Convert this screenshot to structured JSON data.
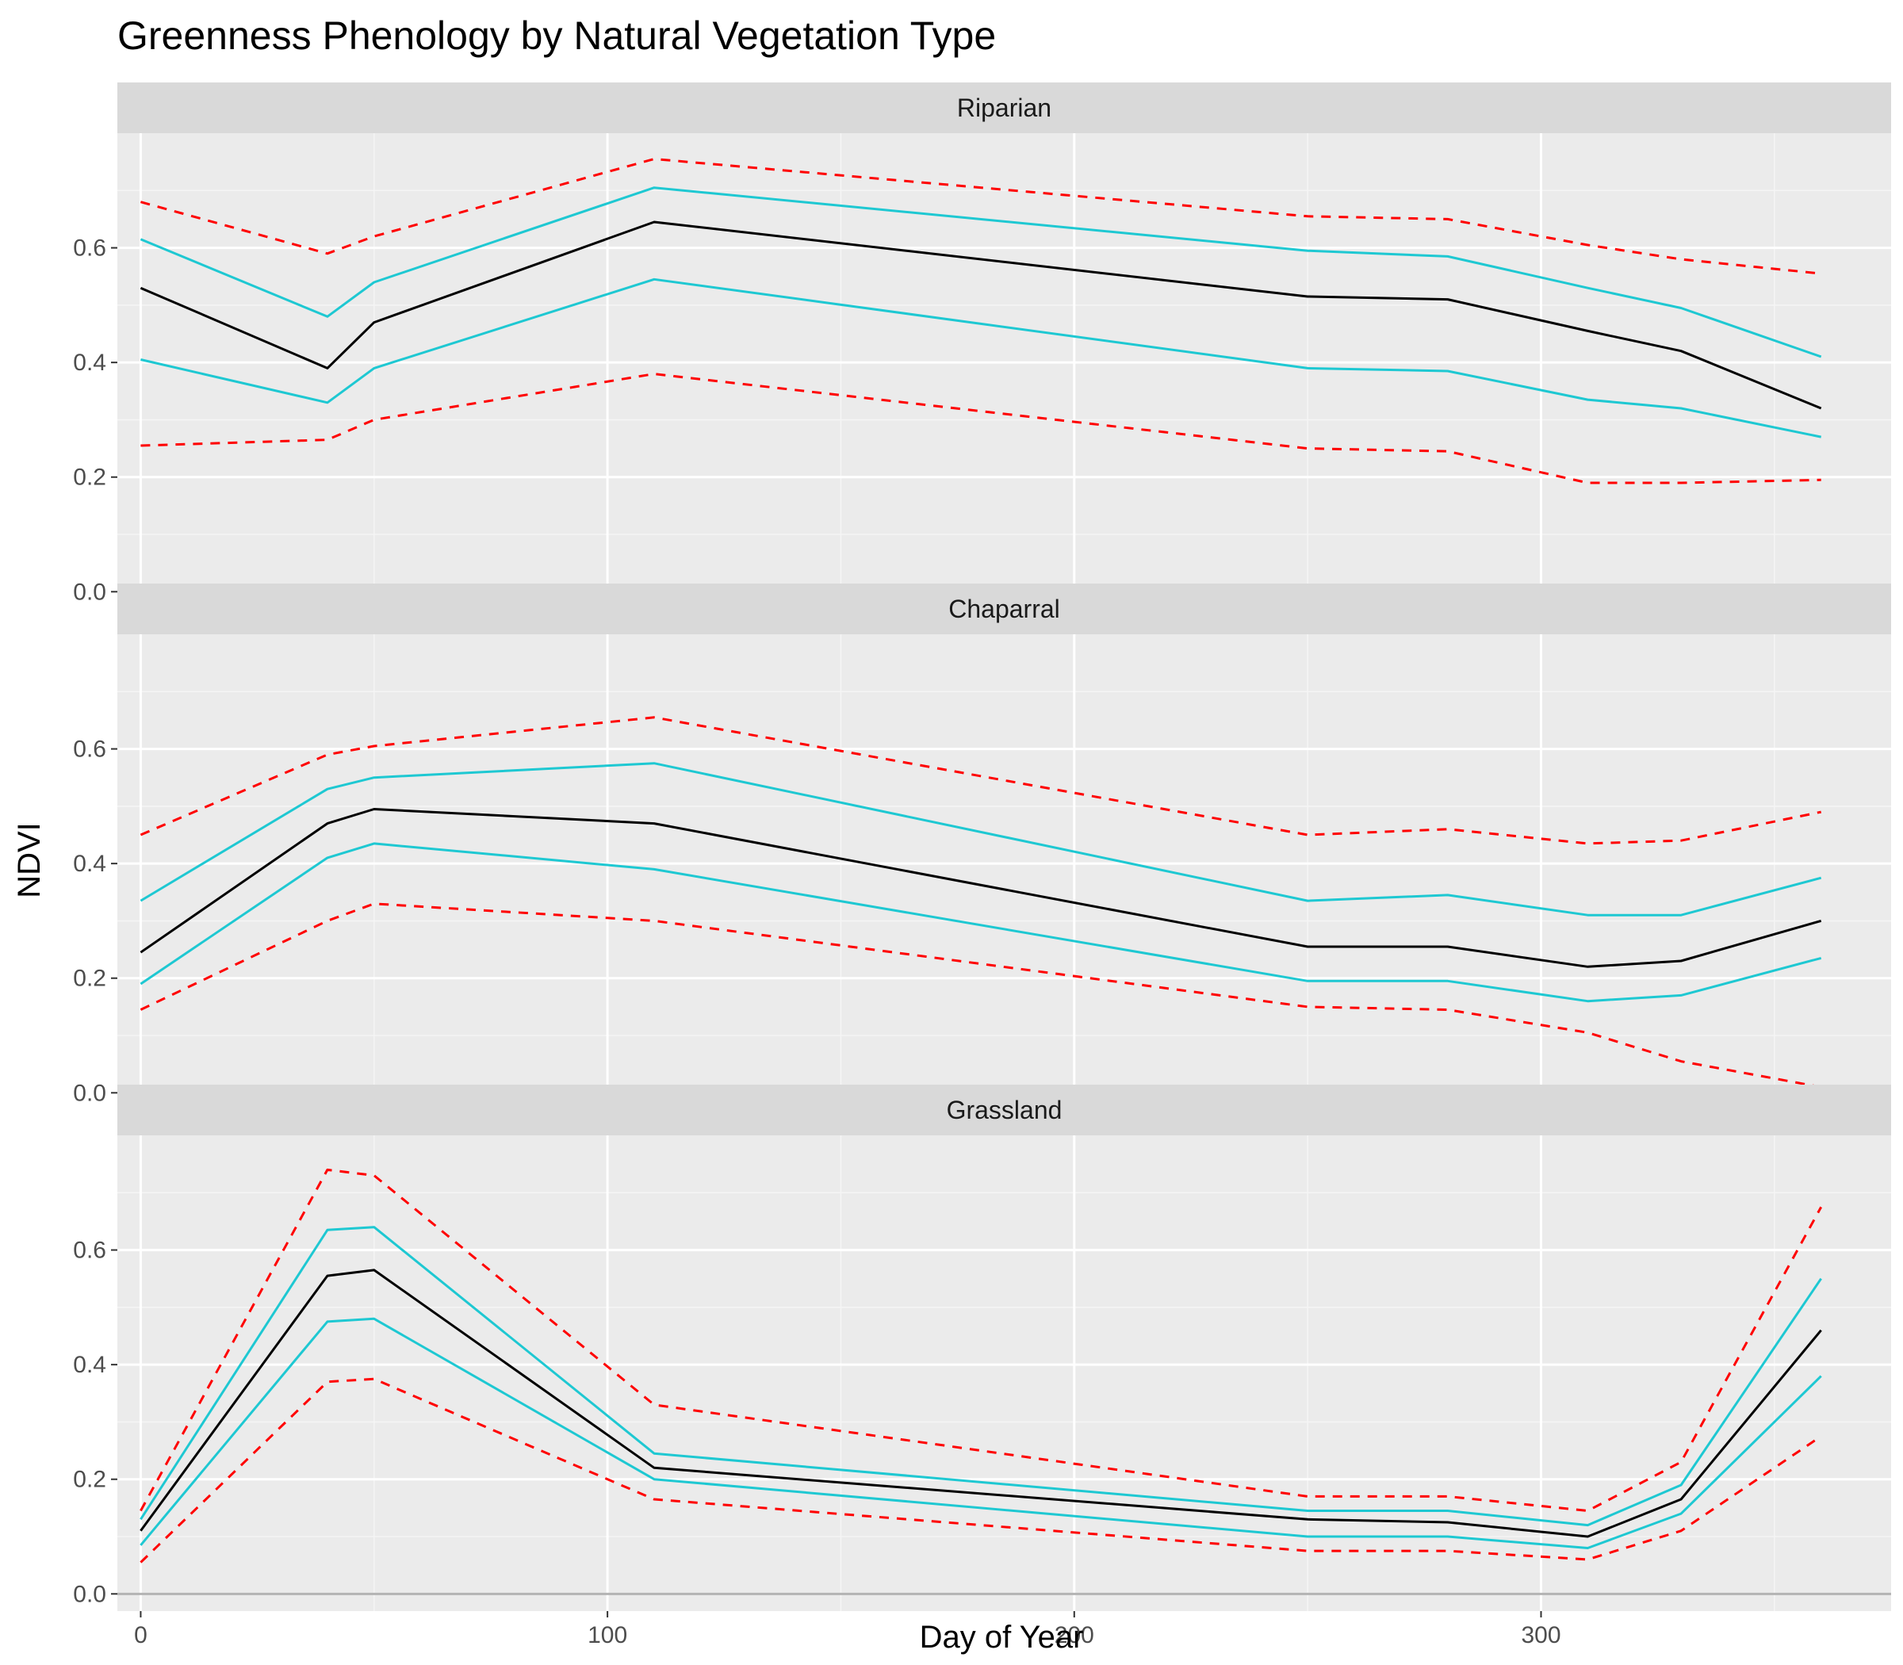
{
  "chart_data": {
    "type": "line",
    "title": "Greenness Phenology by Natural Vegetation Type",
    "xlabel": "Day of Year",
    "ylabel": "NDVI",
    "xlim": [
      -5,
      375
    ],
    "ylim": [
      -0.03,
      0.8
    ],
    "x_ticks": [
      0,
      100,
      200,
      300
    ],
    "y_ticks": [
      0.0,
      0.2,
      0.4,
      0.6
    ],
    "y_tick_labels": [
      "0.0",
      "0.2",
      "0.4",
      "0.6"
    ],
    "x_tick_labels": [
      "0",
      "100",
      "200",
      "300"
    ],
    "grid": true,
    "legend": "none",
    "colors": {
      "panel_bg": "#ebebeb",
      "strip_bg": "#d9d9d9",
      "grid_major": "#ffffff",
      "grid_minor": "#f5f5f5",
      "zero_line": "#b3b3b3",
      "mean": "#000000",
      "inner_band": "#1ec8d2",
      "outer_band": "#ff0000"
    },
    "x": [
      0,
      40,
      50,
      110,
      250,
      280,
      310,
      330,
      360
    ],
    "facets": [
      {
        "label": "Riparian",
        "series": [
          {
            "role": "outer-upper",
            "style": "dashed",
            "color": "#ff0000",
            "values": [
              0.68,
              0.59,
              0.62,
              0.755,
              0.655,
              0.65,
              0.605,
              0.58,
              0.555
            ]
          },
          {
            "role": "inner-upper",
            "style": "solid",
            "color": "#1ec8d2",
            "values": [
              0.615,
              0.48,
              0.54,
              0.705,
              0.595,
              0.585,
              0.53,
              0.495,
              0.41
            ]
          },
          {
            "role": "mean",
            "style": "solid",
            "color": "#000000",
            "values": [
              0.53,
              0.39,
              0.47,
              0.645,
              0.515,
              0.51,
              0.455,
              0.42,
              0.32
            ]
          },
          {
            "role": "inner-lower",
            "style": "solid",
            "color": "#1ec8d2",
            "values": [
              0.405,
              0.33,
              0.39,
              0.545,
              0.39,
              0.385,
              0.335,
              0.32,
              0.27
            ]
          },
          {
            "role": "outer-lower",
            "style": "dashed",
            "color": "#ff0000",
            "values": [
              0.255,
              0.265,
              0.3,
              0.38,
              0.25,
              0.245,
              0.19,
              0.19,
              0.195
            ]
          }
        ]
      },
      {
        "label": "Chaparral",
        "series": [
          {
            "role": "outer-upper",
            "style": "dashed",
            "color": "#ff0000",
            "values": [
              0.45,
              0.59,
              0.605,
              0.655,
              0.45,
              0.46,
              0.435,
              0.44,
              0.49
            ]
          },
          {
            "role": "inner-upper",
            "style": "solid",
            "color": "#1ec8d2",
            "values": [
              0.335,
              0.53,
              0.55,
              0.575,
              0.335,
              0.345,
              0.31,
              0.31,
              0.375
            ]
          },
          {
            "role": "mean",
            "style": "solid",
            "color": "#000000",
            "values": [
              0.245,
              0.47,
              0.495,
              0.47,
              0.255,
              0.255,
              0.22,
              0.23,
              0.3
            ]
          },
          {
            "role": "inner-lower",
            "style": "solid",
            "color": "#1ec8d2",
            "values": [
              0.19,
              0.41,
              0.435,
              0.39,
              0.195,
              0.195,
              0.16,
              0.17,
              0.235
            ]
          },
          {
            "role": "outer-lower",
            "style": "dashed",
            "color": "#ff0000",
            "values": [
              0.145,
              0.3,
              0.33,
              0.3,
              0.15,
              0.145,
              0.105,
              0.055,
              0.01
            ]
          }
        ]
      },
      {
        "label": "Grassland",
        "series": [
          {
            "role": "outer-upper",
            "style": "dashed",
            "color": "#ff0000",
            "values": [
              0.145,
              0.74,
              0.73,
              0.33,
              0.17,
              0.17,
              0.145,
              0.23,
              0.675
            ]
          },
          {
            "role": "inner-upper",
            "style": "solid",
            "color": "#1ec8d2",
            "values": [
              0.13,
              0.635,
              0.64,
              0.245,
              0.145,
              0.145,
              0.12,
              0.19,
              0.55
            ]
          },
          {
            "role": "mean",
            "style": "solid",
            "color": "#000000",
            "values": [
              0.11,
              0.555,
              0.565,
              0.22,
              0.13,
              0.125,
              0.1,
              0.165,
              0.46
            ]
          },
          {
            "role": "inner-lower",
            "style": "solid",
            "color": "#1ec8d2",
            "values": [
              0.085,
              0.475,
              0.48,
              0.2,
              0.1,
              0.1,
              0.08,
              0.14,
              0.38
            ]
          },
          {
            "role": "outer-lower",
            "style": "dashed",
            "color": "#ff0000",
            "values": [
              0.055,
              0.37,
              0.375,
              0.165,
              0.075,
              0.075,
              0.06,
              0.11,
              0.275
            ]
          }
        ]
      }
    ]
  }
}
